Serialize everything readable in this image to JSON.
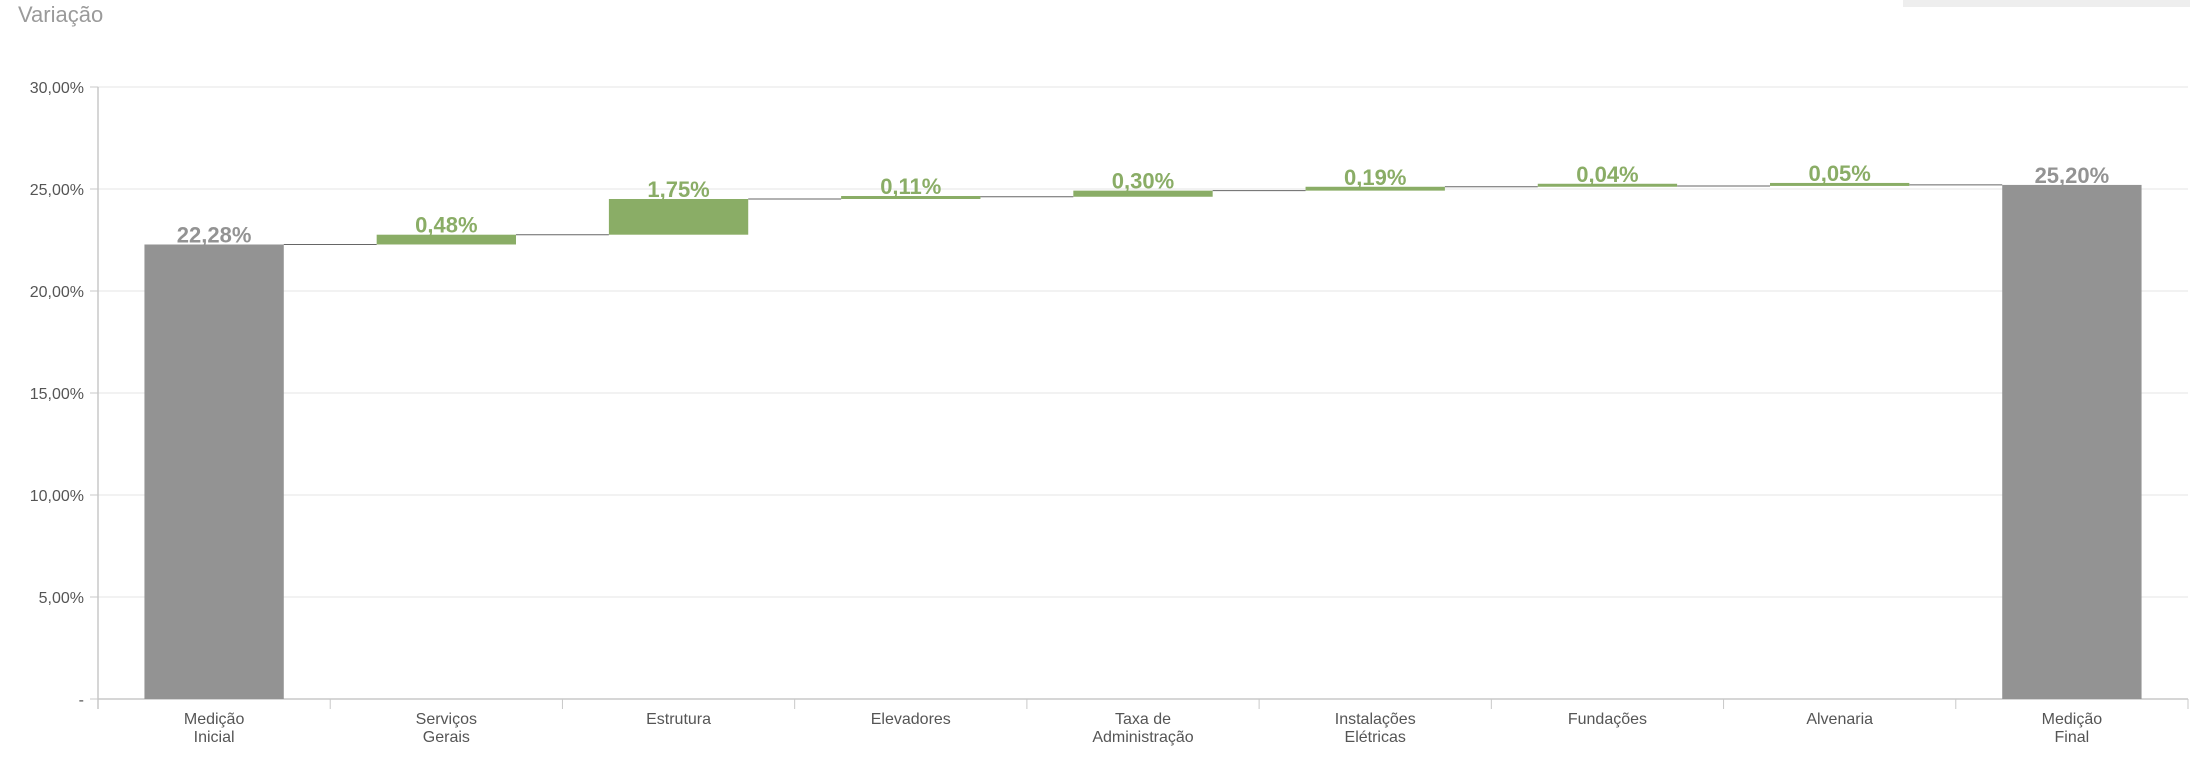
{
  "page": {
    "title": "Variação"
  },
  "chart_data": {
    "type": "waterfall",
    "title": "Variação",
    "categories": [
      [
        "Medição",
        "Inicial"
      ],
      [
        "Serviços",
        "Gerais"
      ],
      [
        "Estrutura"
      ],
      [
        "Elevadores"
      ],
      [
        "Taxa de",
        "Administração"
      ],
      [
        "Instalações",
        "Elétricas"
      ],
      [
        "Fundações"
      ],
      [
        "Alvenaria"
      ],
      [
        "Medição",
        "Final"
      ]
    ],
    "values": [
      22.28,
      0.48,
      1.75,
      0.11,
      0.3,
      0.19,
      0.04,
      0.05,
      25.2
    ],
    "value_labels": [
      "22,28%",
      "0,48%",
      "1,75%",
      "0,11%",
      "0,30%",
      "0,19%",
      "0,04%",
      "0,05%",
      "25,20%"
    ],
    "bar_kinds": [
      "total",
      "delta",
      "delta",
      "delta",
      "delta",
      "delta",
      "delta",
      "delta",
      "total"
    ],
    "ylim": [
      0,
      30
    ],
    "yticks": [
      0,
      5,
      10,
      15,
      20,
      25,
      30
    ],
    "ytick_labels": [
      "-",
      "5,00%",
      "10,00%",
      "15,00%",
      "20,00%",
      "25,00%",
      "30,00%"
    ],
    "grid": true,
    "colors": {
      "total": "#939393",
      "delta": "#8aad66",
      "grid": "#e6e6e6",
      "axis": "#c8c8c8"
    }
  }
}
